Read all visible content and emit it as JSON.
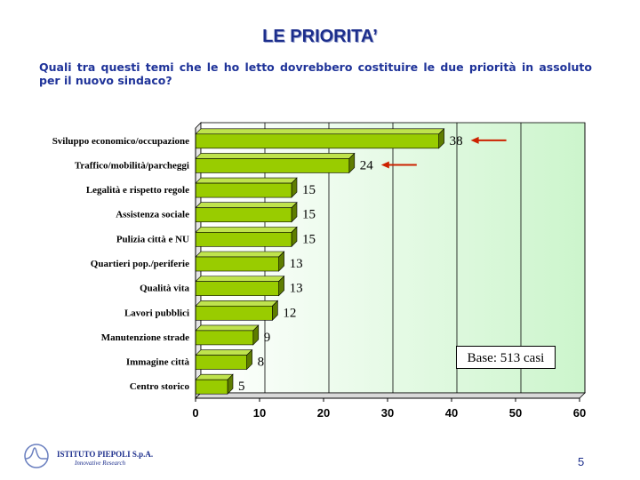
{
  "slide": {
    "title": "LE PRIORITA’",
    "question": "Quali tra questi temi che le ho letto dovrebbero costituire le due priorità in assoluto per il nuovo sindaco?",
    "base": "Base: 513 casi",
    "page_number": "5",
    "logo_name": "ISTITUTO PIEPOLI S.p.A.",
    "logo_sub": "Innovative Research"
  },
  "chart_data": {
    "type": "bar",
    "orientation": "horizontal",
    "categories": [
      "Sviluppo economico/occupazione",
      "Traffico/mobilità/parcheggi",
      "Legalità e rispetto regole",
      "Assistenza sociale",
      "Pulizia città e NU",
      "Quartieri pop./periferie",
      "Qualità vita",
      "Lavori pubblici",
      "Manutenzione strade",
      "Immagine città",
      "Centro storico"
    ],
    "values": [
      38,
      24,
      15,
      15,
      15,
      13,
      13,
      12,
      9,
      8,
      5
    ],
    "xlim": [
      0,
      60
    ],
    "xticks": [
      "0",
      "10",
      "20",
      "30",
      "40",
      "50",
      "60"
    ],
    "highlighted": [
      "Sviluppo economico/occupazione",
      "Traffico/mobilità/parcheggi"
    ],
    "grid": true,
    "colors": {
      "bar": "#99cc00",
      "bar_top": "#bfe34d",
      "bar_side": "#5e7d00",
      "plot_bg_light": "#ffffff",
      "plot_bg_dark": "#ccf5cc",
      "arrow": "#cc2200"
    }
  }
}
